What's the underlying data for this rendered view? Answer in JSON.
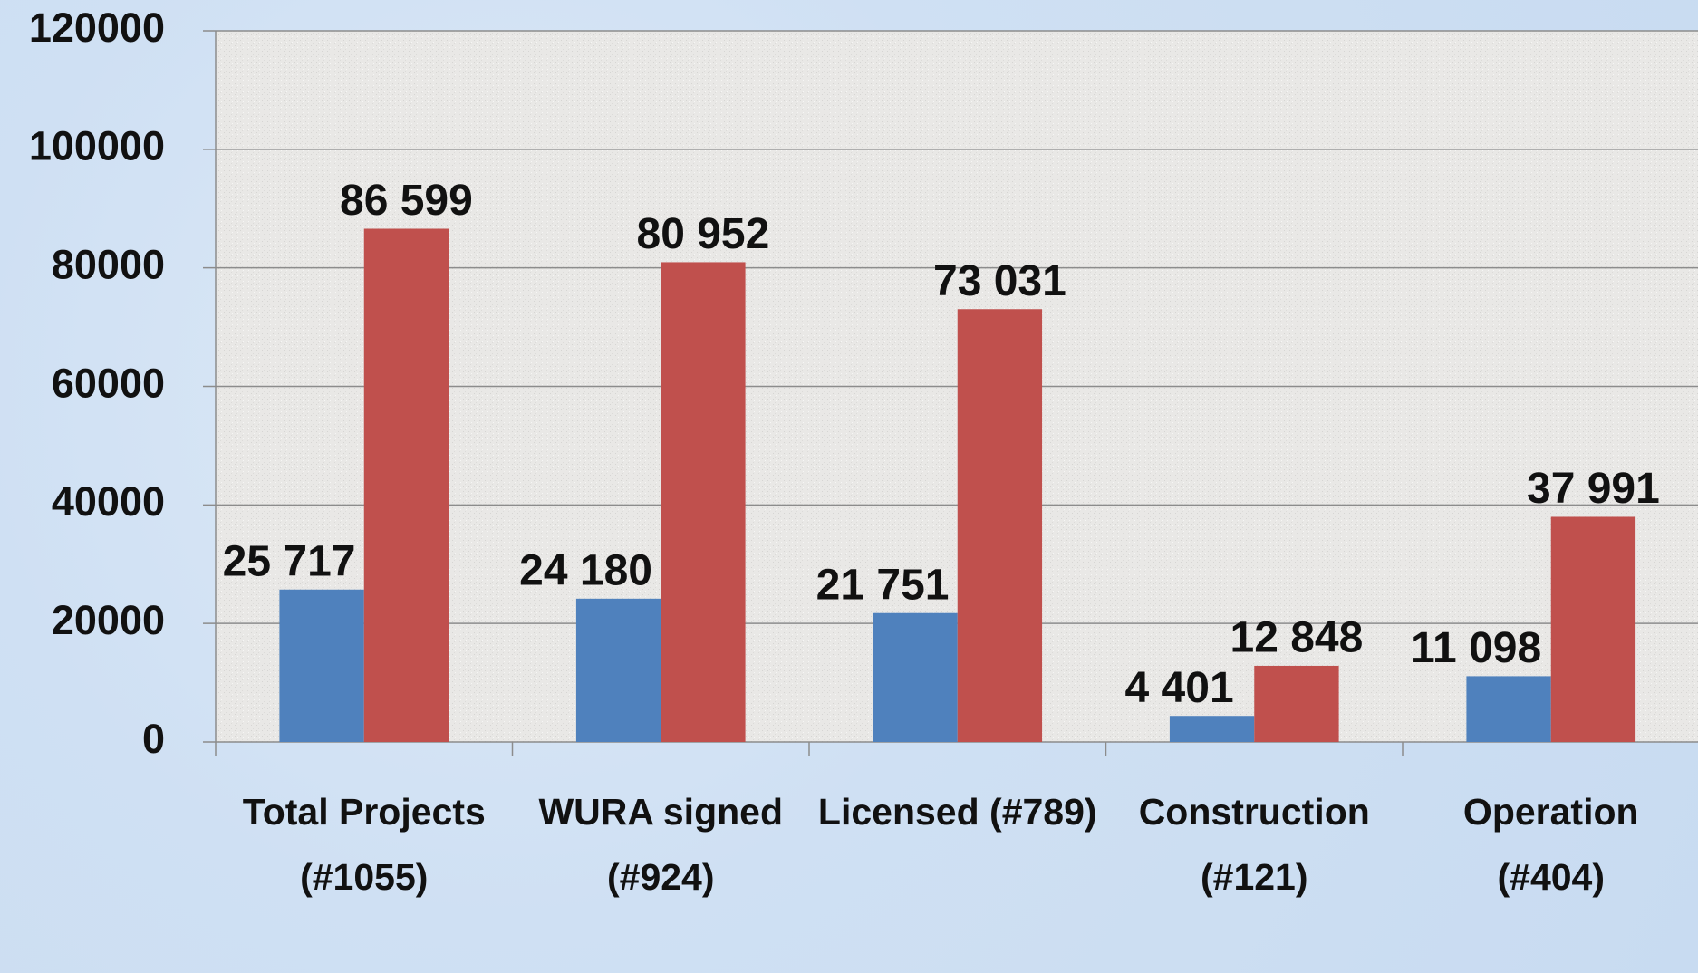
{
  "chart_data": {
    "type": "bar",
    "categories": [
      "Total Projects (#1055)",
      "WURA signed (#924)",
      "Licensed (#789)",
      "Construction (#121)",
      "Operation (#404)"
    ],
    "series": [
      {
        "color": "#4f81bd",
        "values": [
          25717,
          24180,
          21751,
          4401,
          11098
        ],
        "value_labels": [
          "25 717",
          "24 180",
          "21 751",
          "4 401",
          "11 098"
        ]
      },
      {
        "color": "#c0504d",
        "values": [
          86599,
          80952,
          73031,
          12848,
          37991
        ],
        "value_labels": [
          "86 599",
          "80 952",
          "73 031",
          "12 848",
          "37 991"
        ]
      }
    ],
    "ylim": [
      0,
      120000
    ],
    "yticks": [
      0,
      20000,
      40000,
      60000,
      80000,
      100000,
      120000
    ],
    "grid": true
  }
}
